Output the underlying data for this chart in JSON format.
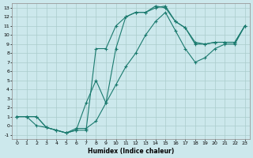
{
  "xlabel": "Humidex (Indice chaleur)",
  "bg_color": "#cce8ec",
  "grid_color": "#aacccc",
  "line_color": "#1a7a6e",
  "xlim": [
    -0.5,
    23.5
  ],
  "ylim": [
    -1.5,
    13.5
  ],
  "xticks": [
    0,
    1,
    2,
    3,
    4,
    5,
    6,
    7,
    8,
    9,
    10,
    11,
    12,
    13,
    14,
    15,
    16,
    17,
    18,
    19,
    20,
    21,
    22,
    23
  ],
  "yticks": [
    -1,
    0,
    1,
    2,
    3,
    4,
    5,
    6,
    7,
    8,
    9,
    10,
    11,
    12,
    13
  ],
  "line1_x": [
    0,
    1,
    2,
    3,
    4,
    5,
    6,
    7,
    8,
    9,
    10,
    11,
    12,
    13,
    14,
    15,
    16,
    17,
    18,
    19,
    20,
    21,
    22,
    23
  ],
  "line1_y": [
    1,
    1,
    1,
    -0.2,
    -0.5,
    -0.8,
    -0.5,
    -0.5,
    8.5,
    8.5,
    11.0,
    12.0,
    12.5,
    12.5,
    13.2,
    13.0,
    11.5,
    10.8,
    9.2,
    9.0,
    9.2,
    9.2,
    9.2,
    11.0
  ],
  "line2_x": [
    0,
    1,
    2,
    3,
    4,
    5,
    6,
    7,
    8,
    9,
    10,
    11,
    12,
    13,
    14,
    15,
    16,
    17,
    18,
    19,
    20,
    21,
    22,
    23
  ],
  "line2_y": [
    1,
    1,
    1,
    -0.2,
    -0.5,
    -0.8,
    -0.5,
    2.5,
    5.0,
    2.5,
    8.5,
    12.0,
    12.5,
    12.5,
    13.0,
    13.2,
    11.5,
    10.8,
    9.0,
    9.0,
    9.2,
    9.2,
    9.2,
    11.0
  ],
  "line3_x": [
    0,
    1,
    2,
    3,
    4,
    5,
    6,
    7,
    8,
    9,
    10,
    11,
    12,
    13,
    14,
    15,
    16,
    17,
    18,
    19,
    20,
    21,
    22,
    23
  ],
  "line3_y": [
    1,
    1,
    0,
    -0.2,
    -0.5,
    -0.8,
    -0.3,
    -0.3,
    0.5,
    2.5,
    4.5,
    6.5,
    8.0,
    10.0,
    11.5,
    12.5,
    10.5,
    8.5,
    7.0,
    7.5,
    8.5,
    9.0,
    9.0,
    11.0
  ]
}
